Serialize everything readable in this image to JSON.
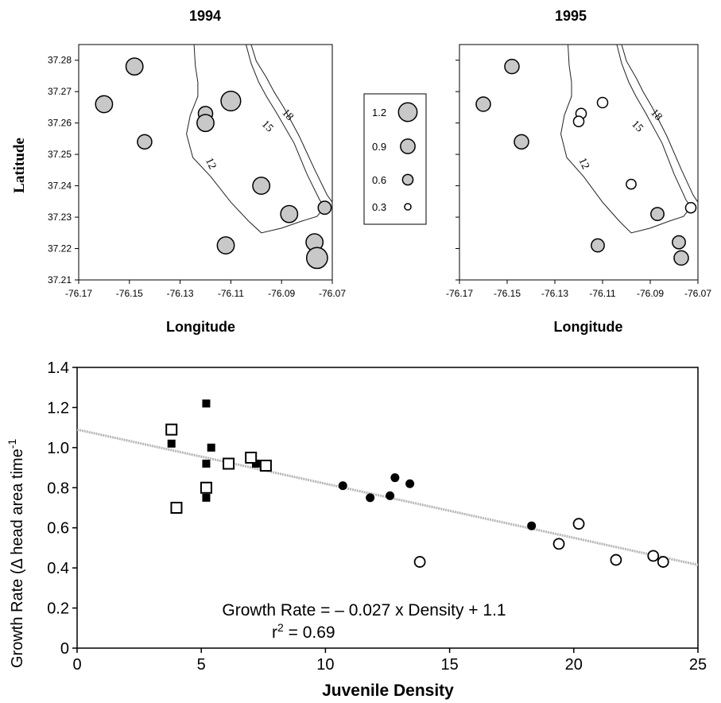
{
  "chart_data": [
    {
      "type": "scatter",
      "title": "1994",
      "xlabel": "Longitude",
      "ylabel": "Latitude",
      "xlim": [
        -76.17,
        -76.07
      ],
      "ylim": [
        37.21,
        37.285
      ],
      "x_ticks": [
        "-76.17",
        "-76.15",
        "-76.13",
        "-76.11",
        "-76.09",
        "-76.07"
      ],
      "y_ticks": [
        "37.21",
        "37.22",
        "37.23",
        "37.24",
        "37.25",
        "37.26",
        "37.27",
        "37.28"
      ],
      "contour_labels": [
        "12",
        "15",
        "18"
      ],
      "points": [
        {
          "x": -76.16,
          "y": 37.266,
          "size": 0.9
        },
        {
          "x": -76.148,
          "y": 37.278,
          "size": 0.9
        },
        {
          "x": -76.144,
          "y": 37.254,
          "size": 0.7
        },
        {
          "x": -76.12,
          "y": 37.263,
          "size": 0.7
        },
        {
          "x": -76.12,
          "y": 37.26,
          "size": 0.9
        },
        {
          "x": -76.11,
          "y": 37.267,
          "size": 1.1
        },
        {
          "x": -76.098,
          "y": 37.24,
          "size": 0.9
        },
        {
          "x": -76.087,
          "y": 37.231,
          "size": 0.9
        },
        {
          "x": -76.073,
          "y": 37.233,
          "size": 0.6
        },
        {
          "x": -76.112,
          "y": 37.221,
          "size": 0.9
        },
        {
          "x": -76.077,
          "y": 37.222,
          "size": 0.9
        },
        {
          "x": -76.076,
          "y": 37.217,
          "size": 1.2
        }
      ]
    },
    {
      "type": "scatter",
      "title": "1995",
      "xlabel": "Longitude",
      "xlim": [
        -76.17,
        -76.07
      ],
      "ylim": [
        37.21,
        37.285
      ],
      "x_ticks": [
        "-76.17",
        "-76.15",
        "-76.13",
        "-76.11",
        "-76.09",
        "-76.07"
      ],
      "contour_labels": [
        "12",
        "15",
        "18"
      ],
      "points": [
        {
          "x": -76.16,
          "y": 37.266,
          "size": 0.7
        },
        {
          "x": -76.148,
          "y": 37.278,
          "size": 0.7
        },
        {
          "x": -76.144,
          "y": 37.254,
          "size": 0.7
        },
        {
          "x": -76.119,
          "y": 37.263,
          "size": 0.4
        },
        {
          "x": -76.12,
          "y": 37.2605,
          "size": 0.4
        },
        {
          "x": -76.11,
          "y": 37.2665,
          "size": 0.4
        },
        {
          "x": -76.098,
          "y": 37.2405,
          "size": 0.35
        },
        {
          "x": -76.087,
          "y": 37.231,
          "size": 0.6
        },
        {
          "x": -76.073,
          "y": 37.233,
          "size": 0.4
        },
        {
          "x": -76.112,
          "y": 37.221,
          "size": 0.6
        },
        {
          "x": -76.078,
          "y": 37.222,
          "size": 0.6
        },
        {
          "x": -76.077,
          "y": 37.217,
          "size": 0.7
        }
      ]
    },
    {
      "type": "legend",
      "entries": [
        {
          "label": "1.2",
          "size": 1.2
        },
        {
          "label": "0.9",
          "size": 0.9
        },
        {
          "label": "0.6",
          "size": 0.6
        },
        {
          "label": "0.3",
          "size": 0.3
        }
      ]
    },
    {
      "type": "scatter",
      "xlabel": "Juvenile Density",
      "ylabel": "Growth Rate (Δ head area time",
      "ylabel_sup": "-1",
      "xlim": [
        0,
        25
      ],
      "ylim": [
        0,
        1.4
      ],
      "x_ticks": [
        "0",
        "5",
        "10",
        "15",
        "20",
        "25"
      ],
      "y_ticks": [
        "0",
        "0.2",
        "0.4",
        "0.6",
        "0.8",
        "1.0",
        "1.2",
        "1.4"
      ],
      "series": [
        {
          "marker": "filled-square",
          "points": [
            [
              3.8,
              1.02
            ],
            [
              5.2,
              1.22
            ],
            [
              5.2,
              0.92
            ],
            [
              5.2,
              0.75
            ],
            [
              5.4,
              1.0
            ],
            [
              7.2,
              0.92
            ]
          ]
        },
        {
          "marker": "open-square",
          "points": [
            [
              3.8,
              1.09
            ],
            [
              4.0,
              0.7
            ],
            [
              5.2,
              0.8
            ],
            [
              6.1,
              0.92
            ],
            [
              7.0,
              0.95
            ],
            [
              7.6,
              0.91
            ]
          ]
        },
        {
          "marker": "filled-circle",
          "points": [
            [
              10.7,
              0.81
            ],
            [
              11.8,
              0.75
            ],
            [
              12.6,
              0.76
            ],
            [
              12.8,
              0.85
            ],
            [
              13.4,
              0.82
            ],
            [
              18.3,
              0.61
            ]
          ]
        },
        {
          "marker": "open-circle",
          "points": [
            [
              13.8,
              0.43
            ],
            [
              19.4,
              0.52
            ],
            [
              20.2,
              0.62
            ],
            [
              21.7,
              0.44
            ],
            [
              23.2,
              0.46
            ],
            [
              23.6,
              0.43
            ]
          ]
        }
      ],
      "trendline": {
        "slope": -0.027,
        "intercept": 1.09
      },
      "annotations": {
        "equation": "Growth Rate = – 0.027 x Density + 1.1",
        "r2_prefix": "r",
        "r2_sup": "2",
        "r2_value": " = 0.69"
      }
    }
  ]
}
